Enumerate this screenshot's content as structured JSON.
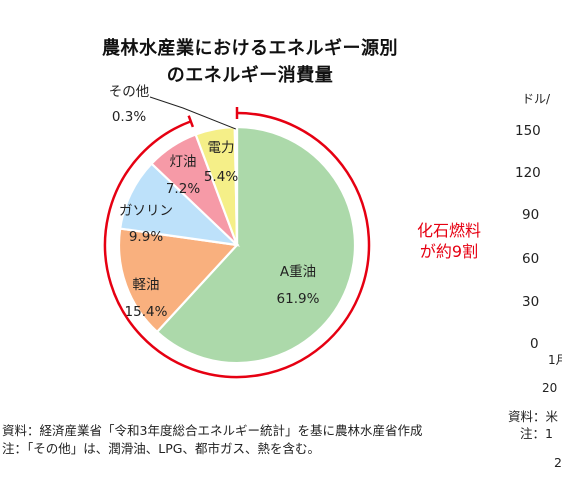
{
  "title_line1": "農林水産業におけるエネルギー源別",
  "title_line2": "のエネルギー消費量",
  "chart_data": {
    "type": "pie",
    "title": "農林水産業におけるエネルギー源別のエネルギー消費量",
    "slices": [
      {
        "label": "A重油",
        "value": 61.9,
        "value_label": "61.9%",
        "color": "#acd9aa"
      },
      {
        "label": "軽油",
        "value": 15.4,
        "value_label": "15.4%",
        "color": "#f9b07e"
      },
      {
        "label": "ガソリン",
        "value": 9.9,
        "value_label": "9.9%",
        "color": "#bde1fa"
      },
      {
        "label": "灯油",
        "value": 7.2,
        "value_label": "7.2%",
        "color": "#f69aa7"
      },
      {
        "label": "電力",
        "value": 5.4,
        "value_label": "5.4%",
        "color": "#f5ef88"
      },
      {
        "label": "その他",
        "value": 0.3,
        "value_label": "0.3%",
        "color": "#e6e6e6"
      }
    ],
    "bracket_color": "#e60012"
  },
  "callout": {
    "line1": "化石燃料",
    "line2": "が約9割"
  },
  "source_note": "資料：経済産業省「令和3年度総合エネルギー統計」を基に農林水産省作成",
  "footnote": "注：「その他」は、潤滑油、LPG、都市ガス、熱を含む。",
  "right_panel": {
    "unit": "ドル/",
    "ticks": [
      "150",
      "120",
      "90",
      "60",
      "30",
      "0"
    ],
    "x_fragment_1": "1月",
    "x_fragment_2": "20",
    "source_fragment": "資料：米",
    "note_fragment": "注：1",
    "bottom_fragment": "2"
  }
}
